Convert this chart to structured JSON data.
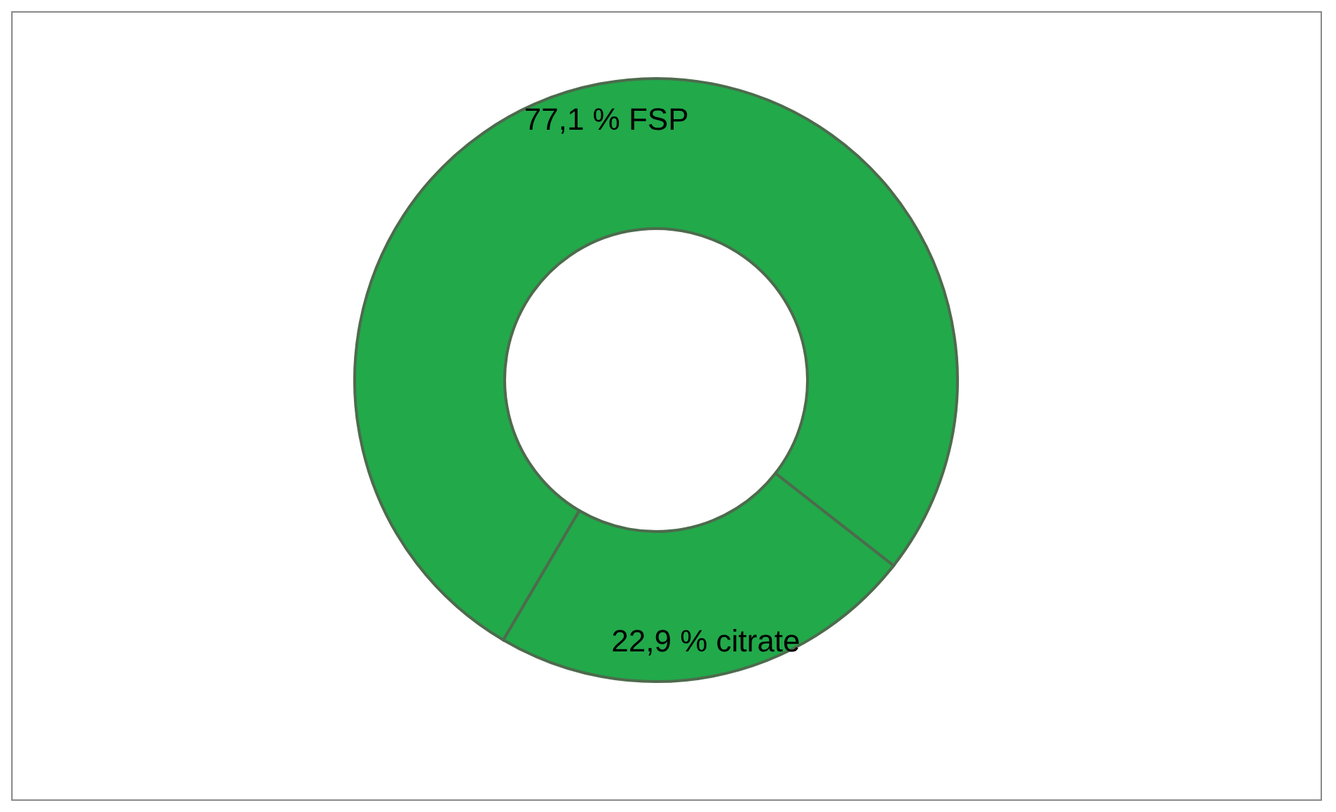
{
  "chart_data": {
    "type": "donut",
    "categories": [
      "FSP",
      "citrate"
    ],
    "values": [
      77.1,
      22.9
    ],
    "value_labels": [
      "77,1 %",
      "22,9 %"
    ],
    "colors": [
      "#22a94a",
      "#22a94a"
    ],
    "legend": false
  }
}
